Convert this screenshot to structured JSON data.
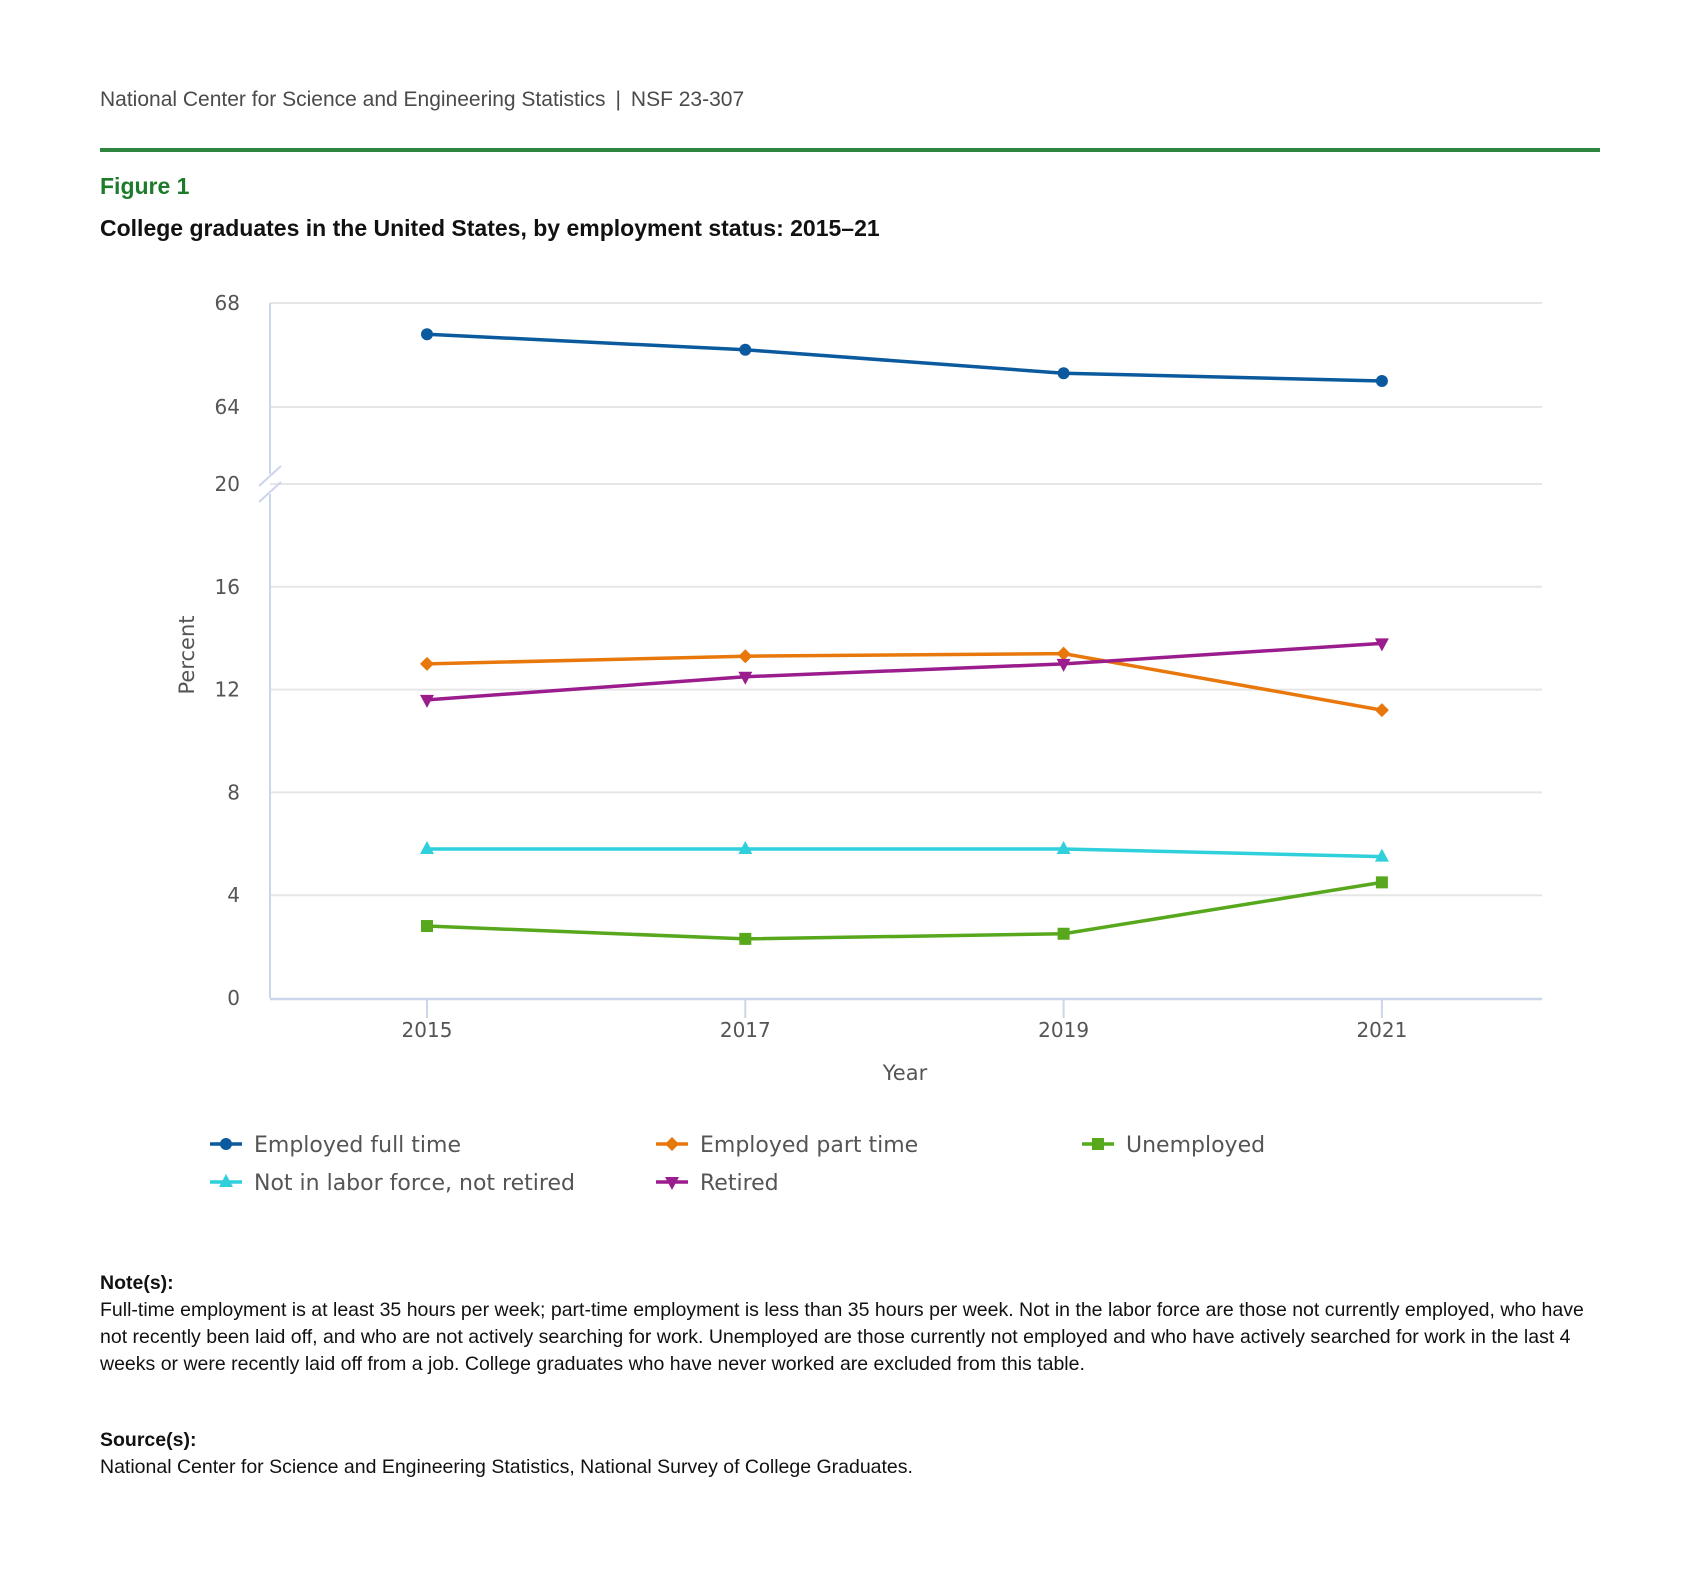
{
  "header": {
    "organization": "National Center for Science and Engineering Statistics",
    "separator": "|",
    "report_id": "NSF 23-307",
    "rule_color": "#2e8540"
  },
  "figure": {
    "label": "Figure 1",
    "title": "College graduates in the United States, by employment status: 2015–21"
  },
  "chart_data": {
    "type": "line",
    "title": "College graduates in the United States, by employment status: 2015–21",
    "xlabel": "Year",
    "ylabel": "Percent",
    "x": [
      "2015",
      "2017",
      "2019",
      "2021"
    ],
    "y_axis": {
      "broken": true,
      "upper_segment": {
        "range": [
          64,
          68
        ],
        "ticks": [
          "64",
          "68"
        ]
      },
      "lower_segment": {
        "range": [
          0,
          20
        ],
        "ticks": [
          "0",
          "4",
          "8",
          "12",
          "16",
          "20"
        ]
      }
    },
    "grid": true,
    "legend_position": "bottom",
    "series": [
      {
        "name": "Employed full time",
        "color": "#0b5a9e",
        "marker": "circle",
        "values": [
          66.8,
          66.2,
          65.3,
          65.0
        ]
      },
      {
        "name": "Employed part time",
        "color": "#e8780c",
        "marker": "diamond",
        "values": [
          13.0,
          13.3,
          13.4,
          11.2
        ]
      },
      {
        "name": "Unemployed",
        "color": "#57a81c",
        "marker": "square",
        "values": [
          2.8,
          2.3,
          2.5,
          4.5
        ]
      },
      {
        "name": "Not in labor force, not retired",
        "color": "#2fd0db",
        "marker": "triangle-up",
        "values": [
          5.8,
          5.8,
          5.8,
          5.5
        ]
      },
      {
        "name": "Retired",
        "color": "#9b1c8c",
        "marker": "triangle-down",
        "values": [
          11.6,
          12.5,
          13.0,
          13.8
        ]
      }
    ]
  },
  "notes": {
    "heading": "Note(s):",
    "text": "Full-time employment is at least 35 hours per week; part-time employment is less than 35 hours per week. Not in the labor force are those not currently employed, who have not recently been laid off, and who are not actively searching for work. Unemployed are those currently not employed and who have actively searched for work in the last 4 weeks or were recently laid off from a job. College graduates who have never worked are excluded from this table."
  },
  "source": {
    "heading": "Source(s):",
    "text": "National Center for Science and Engineering Statistics, National Survey of College Graduates."
  }
}
